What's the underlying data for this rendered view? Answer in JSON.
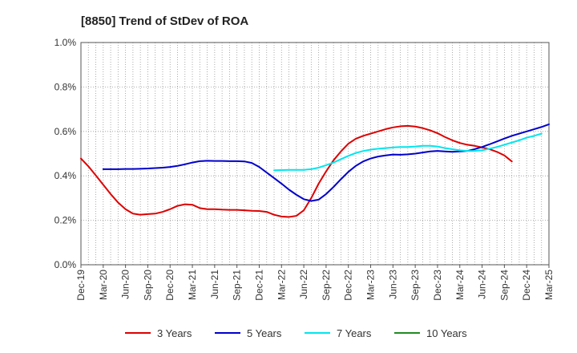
{
  "chart_data": {
    "type": "line",
    "title": "[8850]  Trend of StDev of ROA",
    "xlabel": "",
    "ylabel": "",
    "ylim": [
      0,
      1.0
    ],
    "y_ticks": [
      "0.0%",
      "0.2%",
      "0.4%",
      "0.6%",
      "0.8%",
      "1.0%"
    ],
    "x_ticks": [
      "Dec-19",
      "Mar-20",
      "Jun-20",
      "Sep-20",
      "Dec-20",
      "Mar-21",
      "Jun-21",
      "Sep-21",
      "Dec-21",
      "Mar-22",
      "Jun-22",
      "Sep-22",
      "Dec-22",
      "Mar-23",
      "Jun-23",
      "Sep-23",
      "Dec-23",
      "Mar-24",
      "Jun-24",
      "Sep-24",
      "Dec-24",
      "Mar-25"
    ],
    "grid": true,
    "legend_position": "bottom",
    "series": [
      {
        "name": "3 Years",
        "color": "#dd0000",
        "points": [
          [
            0,
            0.478
          ],
          [
            1,
            0.443
          ],
          [
            2,
            0.402
          ],
          [
            3,
            0.36
          ],
          [
            4,
            0.318
          ],
          [
            5,
            0.28
          ],
          [
            6,
            0.25
          ],
          [
            7,
            0.23
          ],
          [
            8,
            0.225
          ],
          [
            9,
            0.228
          ],
          [
            10,
            0.23
          ],
          [
            11,
            0.238
          ],
          [
            12,
            0.25
          ],
          [
            13,
            0.265
          ],
          [
            14,
            0.272
          ],
          [
            15,
            0.27
          ],
          [
            16,
            0.255
          ],
          [
            17,
            0.25
          ],
          [
            18,
            0.25
          ],
          [
            19,
            0.248
          ],
          [
            20,
            0.247
          ],
          [
            21,
            0.247
          ],
          [
            22,
            0.245
          ],
          [
            23,
            0.243
          ],
          [
            24,
            0.242
          ],
          [
            25,
            0.238
          ],
          [
            26,
            0.225
          ],
          [
            27,
            0.217
          ],
          [
            28,
            0.215
          ],
          [
            29,
            0.22
          ],
          [
            30,
            0.245
          ],
          [
            31,
            0.3
          ],
          [
            32,
            0.365
          ],
          [
            33,
            0.42
          ],
          [
            34,
            0.47
          ],
          [
            35,
            0.51
          ],
          [
            36,
            0.545
          ],
          [
            37,
            0.567
          ],
          [
            38,
            0.58
          ],
          [
            39,
            0.59
          ],
          [
            40,
            0.6
          ],
          [
            41,
            0.61
          ],
          [
            42,
            0.618
          ],
          [
            43,
            0.623
          ],
          [
            44,
            0.625
          ],
          [
            45,
            0.622
          ],
          [
            46,
            0.615
          ],
          [
            47,
            0.605
          ],
          [
            48,
            0.592
          ],
          [
            49,
            0.575
          ],
          [
            50,
            0.56
          ],
          [
            51,
            0.548
          ],
          [
            52,
            0.54
          ],
          [
            53,
            0.535
          ],
          [
            54,
            0.528
          ],
          [
            55,
            0.52
          ],
          [
            56,
            0.508
          ],
          [
            57,
            0.492
          ],
          [
            58,
            0.465
          ]
        ]
      },
      {
        "name": "5 Years",
        "color": "#0000cc",
        "points": [
          [
            3,
            0.43
          ],
          [
            4,
            0.43
          ],
          [
            5,
            0.43
          ],
          [
            6,
            0.431
          ],
          [
            7,
            0.431
          ],
          [
            8,
            0.432
          ],
          [
            9,
            0.433
          ],
          [
            10,
            0.435
          ],
          [
            11,
            0.437
          ],
          [
            12,
            0.44
          ],
          [
            13,
            0.445
          ],
          [
            14,
            0.452
          ],
          [
            15,
            0.46
          ],
          [
            16,
            0.466
          ],
          [
            17,
            0.468
          ],
          [
            18,
            0.467
          ],
          [
            19,
            0.467
          ],
          [
            20,
            0.466
          ],
          [
            21,
            0.466
          ],
          [
            22,
            0.465
          ],
          [
            23,
            0.458
          ],
          [
            24,
            0.44
          ],
          [
            25,
            0.415
          ],
          [
            26,
            0.39
          ],
          [
            27,
            0.365
          ],
          [
            28,
            0.338
          ],
          [
            29,
            0.315
          ],
          [
            30,
            0.295
          ],
          [
            31,
            0.287
          ],
          [
            32,
            0.293
          ],
          [
            33,
            0.318
          ],
          [
            34,
            0.35
          ],
          [
            35,
            0.385
          ],
          [
            36,
            0.418
          ],
          [
            37,
            0.445
          ],
          [
            38,
            0.465
          ],
          [
            39,
            0.478
          ],
          [
            40,
            0.487
          ],
          [
            41,
            0.492
          ],
          [
            42,
            0.496
          ],
          [
            43,
            0.495
          ],
          [
            44,
            0.497
          ],
          [
            45,
            0.5
          ],
          [
            46,
            0.505
          ],
          [
            47,
            0.51
          ],
          [
            48,
            0.512
          ],
          [
            49,
            0.51
          ],
          [
            50,
            0.508
          ],
          [
            51,
            0.51
          ],
          [
            52,
            0.512
          ],
          [
            53,
            0.52
          ],
          [
            54,
            0.53
          ],
          [
            55,
            0.542
          ],
          [
            56,
            0.555
          ],
          [
            57,
            0.568
          ],
          [
            58,
            0.58
          ],
          [
            59,
            0.59
          ],
          [
            60,
            0.6
          ],
          [
            61,
            0.61
          ],
          [
            62,
            0.62
          ],
          [
            63,
            0.632
          ]
        ]
      },
      {
        "name": "7 Years",
        "color": "#00e5ee",
        "points": [
          [
            26,
            0.425
          ],
          [
            27,
            0.426
          ],
          [
            28,
            0.427
          ],
          [
            29,
            0.427
          ],
          [
            30,
            0.427
          ],
          [
            31,
            0.43
          ],
          [
            32,
            0.437
          ],
          [
            33,
            0.448
          ],
          [
            34,
            0.46
          ],
          [
            35,
            0.475
          ],
          [
            36,
            0.49
          ],
          [
            37,
            0.503
          ],
          [
            38,
            0.512
          ],
          [
            39,
            0.518
          ],
          [
            40,
            0.522
          ],
          [
            41,
            0.525
          ],
          [
            42,
            0.528
          ],
          [
            43,
            0.53
          ],
          [
            44,
            0.53
          ],
          [
            45,
            0.532
          ],
          [
            46,
            0.535
          ],
          [
            47,
            0.535
          ],
          [
            48,
            0.532
          ],
          [
            49,
            0.525
          ],
          [
            50,
            0.52
          ],
          [
            51,
            0.515
          ],
          [
            52,
            0.512
          ],
          [
            53,
            0.512
          ],
          [
            54,
            0.515
          ],
          [
            55,
            0.522
          ],
          [
            56,
            0.53
          ],
          [
            57,
            0.54
          ],
          [
            58,
            0.55
          ],
          [
            59,
            0.56
          ],
          [
            60,
            0.572
          ],
          [
            61,
            0.58
          ],
          [
            62,
            0.59
          ]
        ]
      },
      {
        "name": "10 Years",
        "color": "#228b22",
        "points": []
      }
    ]
  }
}
